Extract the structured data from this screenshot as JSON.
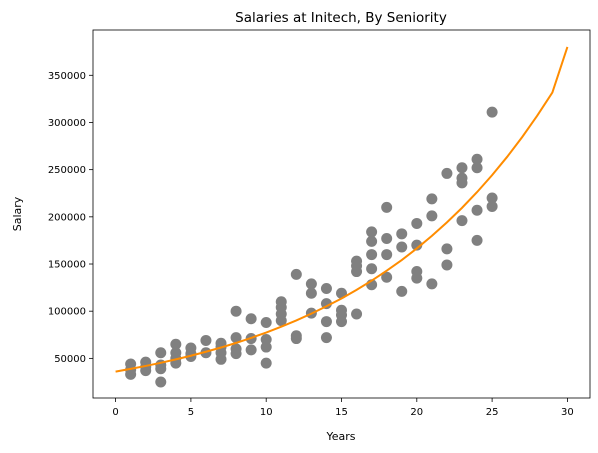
{
  "chart_data": {
    "type": "scatter",
    "title": "Salaries at Initech, By Seniority",
    "xlabel": "Years",
    "ylabel": "Salary",
    "xlim": [
      -1.5,
      31.5
    ],
    "ylim": [
      8000,
      398000
    ],
    "x_ticks": [
      0,
      5,
      10,
      15,
      20,
      25,
      30
    ],
    "y_ticks": [
      50000,
      100000,
      150000,
      200000,
      250000,
      300000,
      350000
    ],
    "grid": false,
    "legend": "none",
    "colors": {
      "points": "#808080",
      "fit_line": "#ff8c00"
    },
    "series": [
      {
        "type": "scatter",
        "points": [
          [
            1,
            33000
          ],
          [
            1,
            38000
          ],
          [
            1,
            44000
          ],
          [
            2,
            37000
          ],
          [
            2,
            41000
          ],
          [
            2,
            46000
          ],
          [
            3,
            25000
          ],
          [
            3,
            39000
          ],
          [
            3,
            43000
          ],
          [
            3,
            56000
          ],
          [
            4,
            45000
          ],
          [
            4,
            50000
          ],
          [
            4,
            56000
          ],
          [
            4,
            65000
          ],
          [
            5,
            52000
          ],
          [
            5,
            55000
          ],
          [
            5,
            61000
          ],
          [
            6,
            56000
          ],
          [
            6,
            69000
          ],
          [
            7,
            49000
          ],
          [
            7,
            56000
          ],
          [
            7,
            62000
          ],
          [
            7,
            66000
          ],
          [
            8,
            55000
          ],
          [
            8,
            60000
          ],
          [
            8,
            72000
          ],
          [
            8,
            100000
          ],
          [
            9,
            59000
          ],
          [
            9,
            71000
          ],
          [
            9,
            92000
          ],
          [
            10,
            45000
          ],
          [
            10,
            62000
          ],
          [
            10,
            70000
          ],
          [
            10,
            88000
          ],
          [
            11,
            90000
          ],
          [
            11,
            97000
          ],
          [
            11,
            104000
          ],
          [
            11,
            110000
          ],
          [
            12,
            71000
          ],
          [
            12,
            74000
          ],
          [
            12,
            139000
          ],
          [
            13,
            98000
          ],
          [
            13,
            119000
          ],
          [
            13,
            129000
          ],
          [
            14,
            72000
          ],
          [
            14,
            89000
          ],
          [
            14,
            108000
          ],
          [
            14,
            124000
          ],
          [
            15,
            89000
          ],
          [
            15,
            96000
          ],
          [
            15,
            101000
          ],
          [
            15,
            119000
          ],
          [
            16,
            97000
          ],
          [
            16,
            142000
          ],
          [
            16,
            148000
          ],
          [
            16,
            153000
          ],
          [
            17,
            128000
          ],
          [
            17,
            145000
          ],
          [
            17,
            160000
          ],
          [
            17,
            174000
          ],
          [
            17,
            184000
          ],
          [
            18,
            136000
          ],
          [
            18,
            160000
          ],
          [
            18,
            177000
          ],
          [
            18,
            210000
          ],
          [
            19,
            121000
          ],
          [
            19,
            168000
          ],
          [
            19,
            182000
          ],
          [
            20,
            135000
          ],
          [
            20,
            142000
          ],
          [
            20,
            170000
          ],
          [
            20,
            193000
          ],
          [
            21,
            129000
          ],
          [
            21,
            201000
          ],
          [
            21,
            219000
          ],
          [
            22,
            149000
          ],
          [
            22,
            166000
          ],
          [
            22,
            246000
          ],
          [
            23,
            196000
          ],
          [
            23,
            236000
          ],
          [
            23,
            241000
          ],
          [
            23,
            252000
          ],
          [
            24,
            175000
          ],
          [
            24,
            207000
          ],
          [
            24,
            252000
          ],
          [
            24,
            261000
          ],
          [
            25,
            211000
          ],
          [
            25,
            220000
          ],
          [
            25,
            311000
          ]
        ]
      },
      {
        "type": "line",
        "x": [
          0,
          1,
          2,
          3,
          4,
          5,
          6,
          7,
          8,
          9,
          10,
          11,
          12,
          13,
          14,
          15,
          16,
          17,
          18,
          19,
          20,
          21,
          22,
          23,
          24,
          25,
          26,
          27,
          28,
          29,
          30
        ],
        "y": [
          36000,
          38900,
          42000,
          45300,
          48900,
          52800,
          57000,
          61500,
          66400,
          71700,
          77400,
          83600,
          90200,
          97400,
          105200,
          113500,
          122600,
          132300,
          142900,
          154200,
          166500,
          179800,
          194100,
          209500,
          226200,
          244200,
          263600,
          284600,
          307300,
          331700,
          380000
        ]
      }
    ]
  }
}
